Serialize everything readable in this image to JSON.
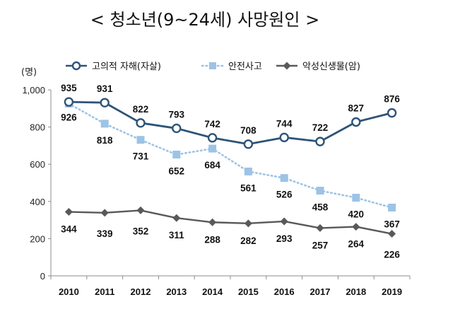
{
  "title": "< 청소년(9~24세) 사망원인 >",
  "chart_data": {
    "type": "line",
    "title": "< 청소년(9~24세) 사망원인 >",
    "y_unit": "(명)",
    "x": [
      "2010",
      "2011",
      "2012",
      "2013",
      "2014",
      "2015",
      "2016",
      "2017",
      "2018",
      "2019"
    ],
    "ylim": [
      0,
      1000
    ],
    "yticks": [
      "0",
      "200",
      "400",
      "600",
      "800",
      "1,000"
    ],
    "ytick_values": [
      0,
      200,
      400,
      600,
      800,
      1000
    ],
    "grid": false,
    "legend_position": "top",
    "series": [
      {
        "name": "고의적 자해(자살)",
        "values": [
          935,
          931,
          822,
          793,
          742,
          708,
          744,
          722,
          827,
          876
        ],
        "color": "#2e5478",
        "marker": "circle",
        "line_style": "solid"
      },
      {
        "name": "안전사고",
        "values": [
          926,
          818,
          731,
          652,
          684,
          561,
          526,
          458,
          420,
          367
        ],
        "color": "#9dc3e6",
        "marker": "square",
        "line_style": "dotted"
      },
      {
        "name": "악성신생물(암)",
        "values": [
          344,
          339,
          352,
          311,
          288,
          282,
          293,
          257,
          264,
          226
        ],
        "color": "#595959",
        "marker": "diamond",
        "line_style": "solid"
      }
    ]
  }
}
